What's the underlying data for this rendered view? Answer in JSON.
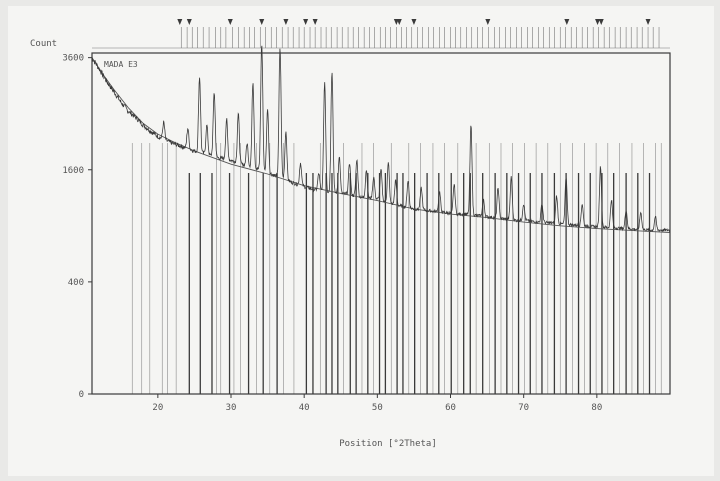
{
  "chart_data": {
    "type": "line",
    "title": "MADA E3",
    "ylabel": "Count",
    "xlabel": "Position [°2Theta]",
    "xlim": [
      11,
      90
    ],
    "ylim": [
      0,
      3700
    ],
    "xticks": [
      20,
      30,
      40,
      50,
      60,
      70,
      80
    ],
    "yticks": [
      0,
      400,
      1600,
      3600
    ],
    "ytick_labels": [
      "0",
      "400",
      "1600",
      "3600"
    ],
    "y_scale": "sqrt",
    "grid": false,
    "ink_color": "#3a3a3a",
    "background_color": "#f5f5f3",
    "pattern": [
      {
        "x": 11,
        "y": 3600
      },
      {
        "x": 12,
        "y": 3360
      },
      {
        "x": 13,
        "y": 3110
      },
      {
        "x": 14,
        "y": 2910
      },
      {
        "x": 15,
        "y": 2700
      },
      {
        "x": 16,
        "y": 2540
      },
      {
        "x": 17,
        "y": 2430
      },
      {
        "x": 18,
        "y": 2300
      },
      {
        "x": 19,
        "y": 2200
      },
      {
        "x": 20,
        "y": 2110
      },
      {
        "x": 21,
        "y": 2050
      },
      {
        "x": 22,
        "y": 2000
      },
      {
        "x": 23,
        "y": 1960
      },
      {
        "x": 24,
        "y": 1920
      },
      {
        "x": 25,
        "y": 1880
      },
      {
        "x": 26,
        "y": 1850
      },
      {
        "x": 27,
        "y": 1820
      },
      {
        "x": 28,
        "y": 1780
      },
      {
        "x": 29,
        "y": 1760
      },
      {
        "x": 30,
        "y": 1740
      },
      {
        "x": 31,
        "y": 1700
      },
      {
        "x": 32,
        "y": 1660
      },
      {
        "x": 33,
        "y": 1640
      },
      {
        "x": 34,
        "y": 1600
      },
      {
        "x": 35,
        "y": 1560
      },
      {
        "x": 36,
        "y": 1520
      },
      {
        "x": 37,
        "y": 1480
      },
      {
        "x": 38,
        "y": 1440
      },
      {
        "x": 39,
        "y": 1400
      },
      {
        "x": 40,
        "y": 1370
      },
      {
        "x": 41,
        "y": 1340
      },
      {
        "x": 42,
        "y": 1320
      },
      {
        "x": 43,
        "y": 1300
      },
      {
        "x": 44,
        "y": 1290
      },
      {
        "x": 45,
        "y": 1280
      },
      {
        "x": 46,
        "y": 1270
      },
      {
        "x": 47,
        "y": 1250
      },
      {
        "x": 48,
        "y": 1230
      },
      {
        "x": 49,
        "y": 1220
      },
      {
        "x": 50,
        "y": 1210
      },
      {
        "x": 51,
        "y": 1180
      },
      {
        "x": 52,
        "y": 1150
      },
      {
        "x": 53,
        "y": 1130
      },
      {
        "x": 54,
        "y": 1110
      },
      {
        "x": 55,
        "y": 1090
      },
      {
        "x": 56,
        "y": 1080
      },
      {
        "x": 57,
        "y": 1070
      },
      {
        "x": 58,
        "y": 1060
      },
      {
        "x": 59,
        "y": 1050
      },
      {
        "x": 60,
        "y": 1040
      },
      {
        "x": 61,
        "y": 1030
      },
      {
        "x": 62,
        "y": 1030
      },
      {
        "x": 63,
        "y": 1020
      },
      {
        "x": 64,
        "y": 1010
      },
      {
        "x": 65,
        "y": 1000
      },
      {
        "x": 66,
        "y": 990
      },
      {
        "x": 67,
        "y": 980
      },
      {
        "x": 68,
        "y": 970
      },
      {
        "x": 69,
        "y": 960
      },
      {
        "x": 70,
        "y": 960
      },
      {
        "x": 71,
        "y": 950
      },
      {
        "x": 72,
        "y": 940
      },
      {
        "x": 73,
        "y": 935
      },
      {
        "x": 74,
        "y": 930
      },
      {
        "x": 75,
        "y": 920
      },
      {
        "x": 76,
        "y": 915
      },
      {
        "x": 77,
        "y": 910
      },
      {
        "x": 78,
        "y": 900
      },
      {
        "x": 79,
        "y": 895
      },
      {
        "x": 80,
        "y": 890
      },
      {
        "x": 81,
        "y": 885
      },
      {
        "x": 82,
        "y": 880
      },
      {
        "x": 83,
        "y": 875
      },
      {
        "x": 84,
        "y": 870
      },
      {
        "x": 85,
        "y": 865
      },
      {
        "x": 86,
        "y": 860
      },
      {
        "x": 87,
        "y": 855
      },
      {
        "x": 88,
        "y": 855
      },
      {
        "x": 89,
        "y": 855
      },
      {
        "x": 90,
        "y": 855
      }
    ],
    "background_curve": [
      {
        "x": 11,
        "y": 3600
      },
      {
        "x": 12.5,
        "y": 3250
      },
      {
        "x": 14,
        "y": 2950
      },
      {
        "x": 16,
        "y": 2600
      },
      {
        "x": 18,
        "y": 2330
      },
      {
        "x": 20,
        "y": 2150
      },
      {
        "x": 22,
        "y": 2030
      },
      {
        "x": 25,
        "y": 1880
      },
      {
        "x": 30,
        "y": 1680
      },
      {
        "x": 35,
        "y": 1540
      },
      {
        "x": 40,
        "y": 1380
      },
      {
        "x": 45,
        "y": 1280
      },
      {
        "x": 50,
        "y": 1190
      },
      {
        "x": 55,
        "y": 1090
      },
      {
        "x": 60,
        "y": 1030
      },
      {
        "x": 65,
        "y": 990
      },
      {
        "x": 70,
        "y": 940
      },
      {
        "x": 75,
        "y": 900
      },
      {
        "x": 80,
        "y": 870
      },
      {
        "x": 85,
        "y": 850
      },
      {
        "x": 90,
        "y": 830
      }
    ],
    "peaks": [
      {
        "x": 20.8,
        "y": 2350
      },
      {
        "x": 24.1,
        "y": 2250
      },
      {
        "x": 25.7,
        "y": 3200
      },
      {
        "x": 26.7,
        "y": 2300
      },
      {
        "x": 27.7,
        "y": 2900
      },
      {
        "x": 29.4,
        "y": 2400
      },
      {
        "x": 31.0,
        "y": 2500
      },
      {
        "x": 32.2,
        "y": 2000
      },
      {
        "x": 33.0,
        "y": 3100
      },
      {
        "x": 34.2,
        "y": 3900
      },
      {
        "x": 35.0,
        "y": 2600
      },
      {
        "x": 36.7,
        "y": 3800
      },
      {
        "x": 37.5,
        "y": 2200
      },
      {
        "x": 39.5,
        "y": 1700
      },
      {
        "x": 42.0,
        "y": 1550
      },
      {
        "x": 42.8,
        "y": 3100
      },
      {
        "x": 43.8,
        "y": 3300
      },
      {
        "x": 44.8,
        "y": 1800
      },
      {
        "x": 46.2,
        "y": 1700
      },
      {
        "x": 47.2,
        "y": 1750
      },
      {
        "x": 48.5,
        "y": 1600
      },
      {
        "x": 49.5,
        "y": 1500
      },
      {
        "x": 50.5,
        "y": 1600
      },
      {
        "x": 51.5,
        "y": 1700
      },
      {
        "x": 52.5,
        "y": 1450
      },
      {
        "x": 54.2,
        "y": 1450
      },
      {
        "x": 56.0,
        "y": 1350
      },
      {
        "x": 58.5,
        "y": 1300
      },
      {
        "x": 60.5,
        "y": 1400
      },
      {
        "x": 62.8,
        "y": 2300
      },
      {
        "x": 64.5,
        "y": 1200
      },
      {
        "x": 66.5,
        "y": 1350
      },
      {
        "x": 68.3,
        "y": 1500
      },
      {
        "x": 70.0,
        "y": 1150
      },
      {
        "x": 72.5,
        "y": 1150
      },
      {
        "x": 74.5,
        "y": 1250
      },
      {
        "x": 75.8,
        "y": 1500
      },
      {
        "x": 78.0,
        "y": 1150
      },
      {
        "x": 80.5,
        "y": 1650
      },
      {
        "x": 82.0,
        "y": 1200
      },
      {
        "x": 84.0,
        "y": 1080
      },
      {
        "x": 86.0,
        "y": 1050
      },
      {
        "x": 88.0,
        "y": 1000
      }
    ],
    "reference_lines": [
      {
        "x": 16.5,
        "weight": "light"
      },
      {
        "x": 17.8,
        "weight": "light"
      },
      {
        "x": 18.9,
        "weight": "light"
      },
      {
        "x": 20.6,
        "weight": "light"
      },
      {
        "x": 21.3,
        "weight": "light"
      },
      {
        "x": 22.5,
        "weight": "light"
      },
      {
        "x": 24.3,
        "weight": "bold"
      },
      {
        "x": 25.8,
        "weight": "bold"
      },
      {
        "x": 27.4,
        "weight": "bold"
      },
      {
        "x": 28.0,
        "weight": "light"
      },
      {
        "x": 28.6,
        "weight": "light"
      },
      {
        "x": 29.8,
        "weight": "bold"
      },
      {
        "x": 30.4,
        "weight": "light"
      },
      {
        "x": 31.3,
        "weight": "light"
      },
      {
        "x": 32.4,
        "weight": "bold"
      },
      {
        "x": 33.5,
        "weight": "light"
      },
      {
        "x": 34.4,
        "weight": "bold"
      },
      {
        "x": 35.3,
        "weight": "light"
      },
      {
        "x": 36.3,
        "weight": "bold"
      },
      {
        "x": 37.2,
        "weight": "light"
      },
      {
        "x": 38.6,
        "weight": "light"
      },
      {
        "x": 40.3,
        "weight": "bold"
      },
      {
        "x": 41.2,
        "weight": "bold"
      },
      {
        "x": 42.2,
        "weight": "light"
      },
      {
        "x": 43.0,
        "weight": "bold"
      },
      {
        "x": 43.8,
        "weight": "bold"
      },
      {
        "x": 44.6,
        "weight": "bold"
      },
      {
        "x": 45.4,
        "weight": "light"
      },
      {
        "x": 46.3,
        "weight": "bold"
      },
      {
        "x": 47.1,
        "weight": "bold"
      },
      {
        "x": 47.9,
        "weight": "light"
      },
      {
        "x": 48.7,
        "weight": "bold"
      },
      {
        "x": 49.5,
        "weight": "light"
      },
      {
        "x": 50.3,
        "weight": "bold"
      },
      {
        "x": 51.1,
        "weight": "bold"
      },
      {
        "x": 51.9,
        "weight": "light"
      },
      {
        "x": 52.7,
        "weight": "bold"
      },
      {
        "x": 53.5,
        "weight": "bold"
      },
      {
        "x": 54.3,
        "weight": "light"
      },
      {
        "x": 55.1,
        "weight": "bold"
      },
      {
        "x": 55.9,
        "weight": "light"
      },
      {
        "x": 56.8,
        "weight": "bold"
      },
      {
        "x": 57.6,
        "weight": "light"
      },
      {
        "x": 58.4,
        "weight": "bold"
      },
      {
        "x": 59.2,
        "weight": "light"
      },
      {
        "x": 60.1,
        "weight": "bold"
      },
      {
        "x": 61.0,
        "weight": "light"
      },
      {
        "x": 61.8,
        "weight": "bold"
      },
      {
        "x": 62.7,
        "weight": "bold"
      },
      {
        "x": 63.5,
        "weight": "light"
      },
      {
        "x": 64.4,
        "weight": "bold"
      },
      {
        "x": 65.3,
        "weight": "light"
      },
      {
        "x": 66.1,
        "weight": "bold"
      },
      {
        "x": 66.9,
        "weight": "light"
      },
      {
        "x": 67.7,
        "weight": "bold"
      },
      {
        "x": 68.5,
        "weight": "light"
      },
      {
        "x": 69.3,
        "weight": "bold"
      },
      {
        "x": 70.1,
        "weight": "light"
      },
      {
        "x": 70.9,
        "weight": "bold"
      },
      {
        "x": 71.7,
        "weight": "light"
      },
      {
        "x": 72.5,
        "weight": "bold"
      },
      {
        "x": 73.3,
        "weight": "light"
      },
      {
        "x": 74.2,
        "weight": "bold"
      },
      {
        "x": 75.0,
        "weight": "light"
      },
      {
        "x": 75.8,
        "weight": "bold"
      },
      {
        "x": 76.7,
        "weight": "light"
      },
      {
        "x": 77.5,
        "weight": "bold"
      },
      {
        "x": 78.3,
        "weight": "light"
      },
      {
        "x": 79.1,
        "weight": "bold"
      },
      {
        "x": 79.9,
        "weight": "light"
      },
      {
        "x": 80.7,
        "weight": "bold"
      },
      {
        "x": 81.5,
        "weight": "light"
      },
      {
        "x": 82.3,
        "weight": "bold"
      },
      {
        "x": 83.1,
        "weight": "light"
      },
      {
        "x": 84.0,
        "weight": "bold"
      },
      {
        "x": 84.8,
        "weight": "light"
      },
      {
        "x": 85.6,
        "weight": "bold"
      },
      {
        "x": 86.4,
        "weight": "light"
      },
      {
        "x": 87.2,
        "weight": "bold"
      },
      {
        "x": 88.0,
        "weight": "light"
      },
      {
        "x": 88.8,
        "weight": "light"
      }
    ],
    "top_ticks": [
      23.2,
      24.0,
      24.7,
      25.4,
      26.2,
      27.0,
      27.9,
      28.6,
      29.3,
      30.2,
      31.0,
      31.8,
      32.5,
      33.2,
      34.0,
      34.7,
      35.5,
      36.2,
      37.0,
      37.8,
      38.5,
      39.3,
      40.0,
      40.8,
      41.5,
      42.3,
      43.0,
      43.7,
      44.5,
      45.2,
      46.0,
      46.7,
      47.4,
      48.2,
      48.9,
      49.6,
      50.4,
      51.1,
      51.8,
      52.6,
      53.3,
      54.0,
      54.7,
      55.5,
      56.2,
      57.0,
      57.7,
      58.5,
      59.2,
      60.0,
      60.7,
      61.4,
      62.2,
      62.9,
      63.7,
      64.4,
      65.2,
      66.0,
      66.7,
      67.5,
      68.2,
      69.0,
      69.7,
      70.5,
      71.2,
      72.0,
      72.7,
      73.5,
      74.2,
      75.0,
      75.7,
      76.5,
      77.2,
      78.0,
      78.7,
      79.5,
      80.2,
      81.0,
      81.7,
      82.5,
      83.2,
      84.0,
      84.7,
      85.5,
      86.2,
      87.0,
      87.7,
      88.5
    ],
    "phase_markers": [
      23.0,
      24.3,
      29.9,
      34.2,
      37.5,
      40.2,
      41.5,
      52.6,
      53.0,
      55.0,
      65.1,
      75.9,
      80.1,
      80.6,
      87.0
    ]
  }
}
